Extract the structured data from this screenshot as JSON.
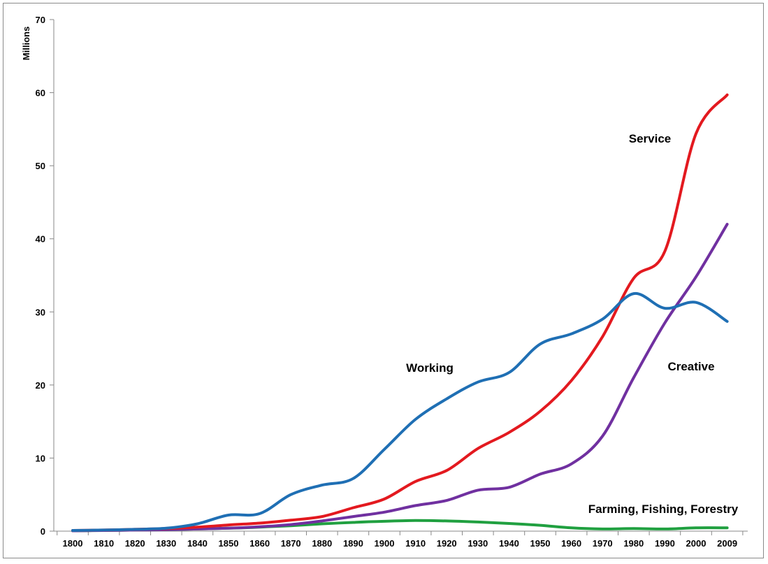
{
  "chart_data": {
    "type": "line",
    "ylabel": "Millions",
    "ylim": [
      0,
      70
    ],
    "yticks": [
      "0",
      "10",
      "20",
      "30",
      "40",
      "50",
      "60",
      "70"
    ],
    "x": [
      1800,
      1810,
      1820,
      1830,
      1840,
      1850,
      1860,
      1870,
      1880,
      1890,
      1900,
      1910,
      1920,
      1930,
      1940,
      1950,
      1960,
      1970,
      1980,
      1990,
      2000,
      2009
    ],
    "xticks": [
      "1800",
      "1810",
      "1820",
      "1830",
      "1840",
      "1850",
      "1860",
      "1870",
      "1880",
      "1890",
      "1900",
      "1910",
      "1920",
      "1930",
      "1940",
      "1950",
      "1960",
      "1970",
      "1980",
      "1990",
      "2000",
      "2009"
    ],
    "grid": false,
    "series": [
      {
        "name": "Working",
        "color": "#1f6fb4",
        "values": [
          0.1,
          0.15,
          0.25,
          0.4,
          1.0,
          2.2,
          2.4,
          5.0,
          6.3,
          7.2,
          11.2,
          15.3,
          18.1,
          20.4,
          21.7,
          25.6,
          27.0,
          29.0,
          32.5,
          30.5,
          31.3,
          28.7
        ]
      },
      {
        "name": "Service",
        "color": "#e3191f",
        "values": [
          0.1,
          0.15,
          0.25,
          0.35,
          0.55,
          0.85,
          1.1,
          1.5,
          2.0,
          3.2,
          4.4,
          6.8,
          8.3,
          11.3,
          13.5,
          16.4,
          20.6,
          26.6,
          34.6,
          38.3,
          54.4,
          59.7
        ]
      },
      {
        "name": "Creative",
        "color": "#7030a0",
        "values": [
          0.05,
          0.1,
          0.15,
          0.2,
          0.3,
          0.4,
          0.6,
          0.9,
          1.4,
          2.0,
          2.6,
          3.5,
          4.2,
          5.6,
          6.0,
          7.8,
          9.2,
          13.0,
          21.0,
          28.5,
          34.8,
          42.0
        ]
      },
      {
        "name": "Farming, Fishing, Forestry",
        "color": "#20a040",
        "values": [
          0.05,
          0.1,
          0.15,
          0.2,
          0.3,
          0.4,
          0.55,
          0.75,
          1.0,
          1.2,
          1.35,
          1.45,
          1.4,
          1.25,
          1.05,
          0.8,
          0.45,
          0.3,
          0.35,
          0.3,
          0.45,
          0.45
        ]
      }
    ],
    "annotations": [
      {
        "text": "Service",
        "series": "Service"
      },
      {
        "text": "Working",
        "series": "Working"
      },
      {
        "text": "Creative",
        "series": "Creative"
      },
      {
        "text": "Farming, Fishing, Forestry",
        "series": "Farming, Fishing, Forestry"
      }
    ]
  }
}
